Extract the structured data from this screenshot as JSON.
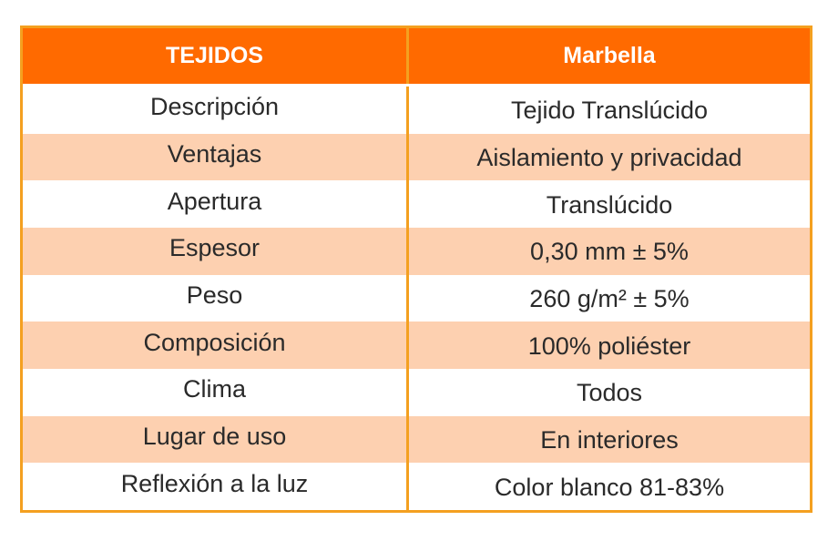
{
  "table": {
    "header": {
      "col1": "TEJIDOS",
      "col2": "Marbella"
    },
    "rows": [
      {
        "label": "Descripción",
        "value": "Tejido Translúcido"
      },
      {
        "label": "Ventajas",
        "value": "Aislamiento y privacidad"
      },
      {
        "label": "Apertura",
        "value": "Translúcido"
      },
      {
        "label": "Espesor",
        "value": "0,30 mm ± 5%"
      },
      {
        "label": "Peso",
        "value": "260 g/m² ± 5%"
      },
      {
        "label": "Composición",
        "value": "100% poliéster"
      },
      {
        "label": "Clima",
        "value": "Todos"
      },
      {
        "label": "Lugar de uso",
        "value": "En interiores"
      },
      {
        "label": "Reflexión a la luz",
        "value": "Color blanco 81-83%"
      }
    ]
  },
  "colors": {
    "header_bg": "#ff6a00",
    "border": "#f4a020",
    "stripe": "#fdd0b0",
    "text": "#2a2a2a"
  }
}
